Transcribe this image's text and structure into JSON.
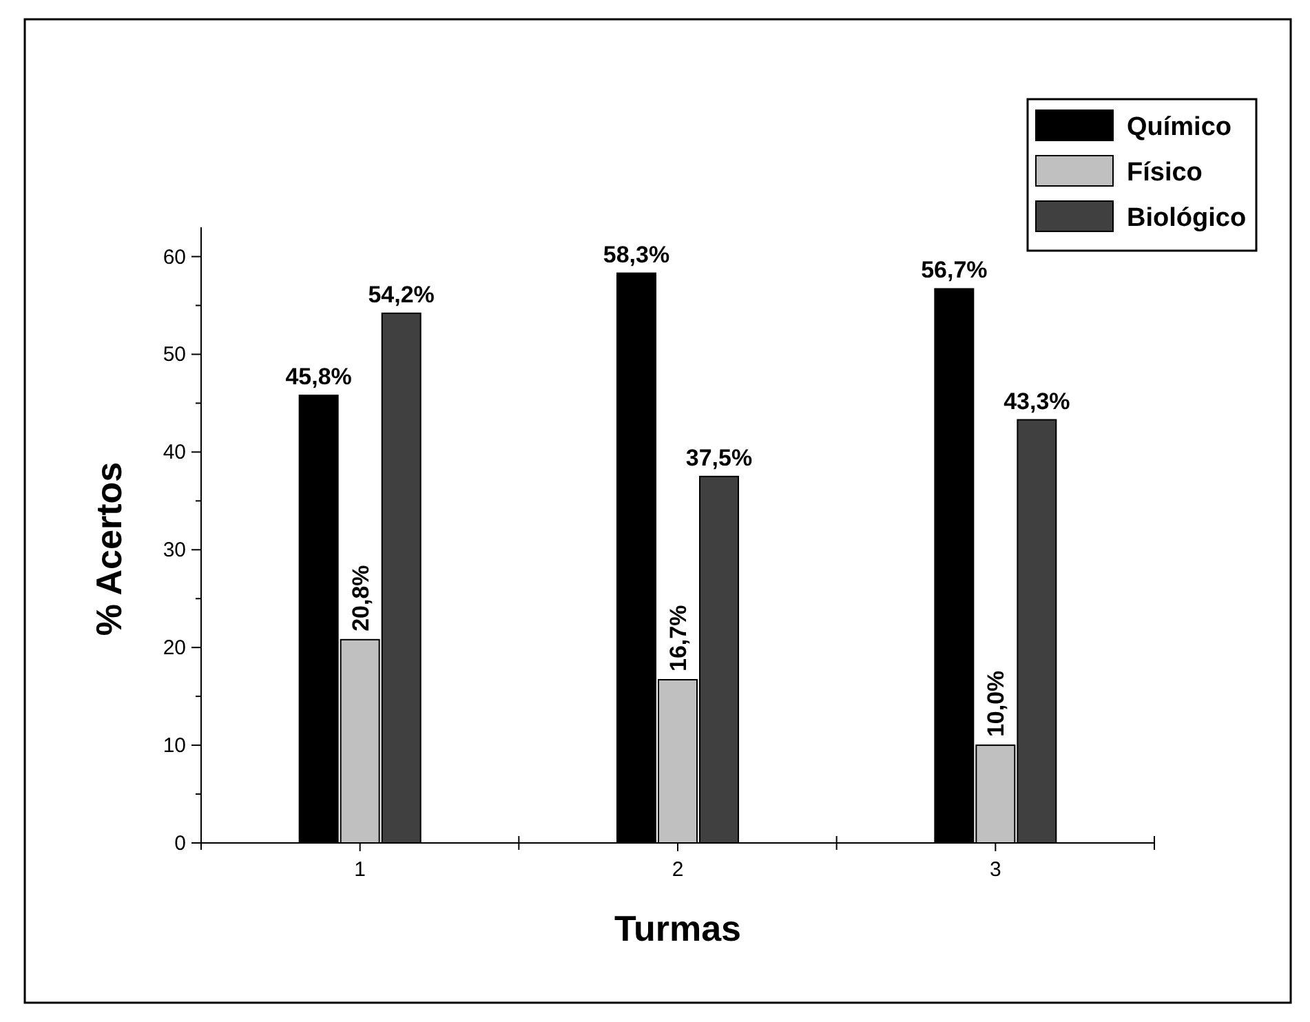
{
  "chart_data": {
    "type": "bar",
    "xlabel": "Turmas",
    "ylabel": "% Acertos",
    "categories": [
      "1",
      "2",
      "3"
    ],
    "series": [
      {
        "name": "Químico",
        "color": "#000000",
        "values": [
          45.8,
          58.3,
          56.7
        ],
        "value_labels": [
          "45,8%",
          "58,3%",
          "56,7%"
        ]
      },
      {
        "name": "Físico",
        "color": "#c0c0c0",
        "values": [
          20.8,
          16.7,
          10.0
        ],
        "value_labels": [
          "20,8%",
          "16,7%",
          "10,0%"
        ]
      },
      {
        "name": "Biológico",
        "color": "#404040",
        "values": [
          54.2,
          37.5,
          43.3
        ],
        "value_labels": [
          "54,2%",
          "37,5%",
          "43,3%"
        ]
      }
    ],
    "ylim": [
      0,
      63
    ],
    "yticks": [
      0,
      {
        "value": 5,
        "label": null
      },
      10,
      {
        "value": 15,
        "label": null
      },
      20,
      {
        "value": 25,
        "label": null
      },
      30,
      {
        "value": 35,
        "label": null
      },
      40,
      {
        "value": 45,
        "label": null
      },
      50,
      {
        "value": 55,
        "label": null
      },
      60
    ],
    "legend": "top right",
    "grid": false
  }
}
